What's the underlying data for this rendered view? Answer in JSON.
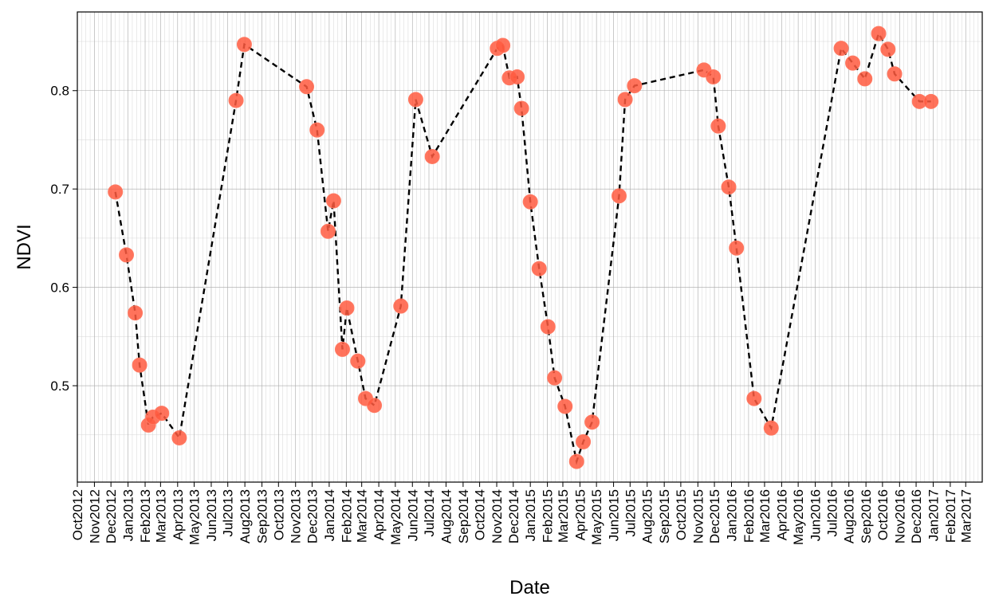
{
  "chart_data": {
    "type": "line",
    "title": "",
    "xlabel": "Date",
    "ylabel": "NDVI",
    "x_type": "date",
    "xlim": [
      "2012-10-01",
      "2017-03-31"
    ],
    "ylim": [
      0.402,
      0.88
    ],
    "y_ticks": [
      0.5,
      0.6,
      0.7,
      0.8
    ],
    "y_tick_labels": [
      "0.5",
      "0.6",
      "0.7",
      "0.8"
    ],
    "x_ticks": [
      "2012-10-01",
      "2012-11-01",
      "2012-12-01",
      "2013-01-01",
      "2013-02-01",
      "2013-03-01",
      "2013-04-01",
      "2013-05-01",
      "2013-06-01",
      "2013-07-01",
      "2013-08-01",
      "2013-09-01",
      "2013-10-01",
      "2013-11-01",
      "2013-12-01",
      "2014-01-01",
      "2014-02-01",
      "2014-03-01",
      "2014-04-01",
      "2014-05-01",
      "2014-06-01",
      "2014-07-01",
      "2014-08-01",
      "2014-09-01",
      "2014-10-01",
      "2014-11-01",
      "2014-12-01",
      "2015-01-01",
      "2015-02-01",
      "2015-03-01",
      "2015-04-01",
      "2015-05-01",
      "2015-06-01",
      "2015-07-01",
      "2015-08-01",
      "2015-09-01",
      "2015-10-01",
      "2015-11-01",
      "2015-12-01",
      "2016-01-01",
      "2016-02-01",
      "2016-03-01",
      "2016-04-01",
      "2016-05-01",
      "2016-06-01",
      "2016-07-01",
      "2016-08-01",
      "2016-09-01",
      "2016-10-01",
      "2016-11-01",
      "2016-12-01",
      "2017-01-01",
      "2017-02-01",
      "2017-03-01"
    ],
    "x_tick_labels": [
      "Oct2012",
      "Nov2012",
      "Dec2012",
      "Jan2013",
      "Feb2013",
      "Mar2013",
      "Apr2013",
      "May2013",
      "Jun2013",
      "Jul2013",
      "Aug2013",
      "Sep2013",
      "Oct2013",
      "Nov2013",
      "Dec2013",
      "Jan2014",
      "Feb2014",
      "Mar2014",
      "Apr2014",
      "May2014",
      "Jun2014",
      "Jul2014",
      "Aug2014",
      "Sep2014",
      "Oct2014",
      "Nov2014",
      "Dec2014",
      "Jan2015",
      "Feb2015",
      "Mar2015",
      "Apr2015",
      "May2015",
      "Jun2015",
      "Jul2015",
      "Aug2015",
      "Sep2015",
      "Oct2015",
      "Nov2015",
      "Dec2015",
      "Jan2016",
      "Feb2016",
      "Mar2016",
      "Apr2016",
      "May2016",
      "Jun2016",
      "Jul2016",
      "Aug2016",
      "Sep2016",
      "Oct2016",
      "Nov2016",
      "Dec2016",
      "Jan2017",
      "Feb2017",
      "Mar2017"
    ],
    "minor_gridlines_per_month": 4,
    "grid": true,
    "legend": "none",
    "point_color": "#FF5A40",
    "line_color": "#000000",
    "line_style": "dashed",
    "series": [
      {
        "x": [
          "2012-12-09",
          "2012-12-29",
          "2013-01-14",
          "2013-01-22",
          "2013-02-07",
          "2013-02-15",
          "2013-03-03",
          "2013-04-04",
          "2013-07-16",
          "2013-07-31",
          "2013-11-21",
          "2013-12-10",
          "2013-12-30",
          "2014-01-09",
          "2014-01-25",
          "2014-02-02",
          "2014-02-22",
          "2014-03-08",
          "2014-03-24",
          "2014-05-11",
          "2014-06-07",
          "2014-07-07",
          "2014-11-02",
          "2014-11-12",
          "2014-11-24",
          "2014-12-08",
          "2014-12-16",
          "2015-01-01",
          "2015-01-17",
          "2015-02-02",
          "2015-02-14",
          "2015-03-05",
          "2015-03-26",
          "2015-04-07",
          "2015-04-23",
          "2015-06-11",
          "2015-06-22",
          "2015-07-09",
          "2015-11-12",
          "2015-11-29",
          "2015-12-08",
          "2015-12-27",
          "2016-01-10",
          "2016-02-11",
          "2016-03-13",
          "2016-07-18",
          "2016-08-08",
          "2016-08-30",
          "2016-09-24",
          "2016-10-11",
          "2016-10-23",
          "2016-12-07",
          "2016-12-28"
        ],
        "y": [
          0.697,
          0.633,
          0.574,
          0.521,
          0.46,
          0.468,
          0.472,
          0.447,
          0.79,
          0.847,
          0.804,
          0.76,
          0.657,
          0.688,
          0.537,
          0.579,
          0.525,
          0.487,
          0.48,
          0.581,
          0.791,
          0.733,
          0.843,
          0.846,
          0.813,
          0.814,
          0.782,
          0.687,
          0.619,
          0.56,
          0.508,
          0.479,
          0.423,
          0.443,
          0.463,
          0.693,
          0.791,
          0.805,
          0.821,
          0.814,
          0.764,
          0.702,
          0.64,
          0.487,
          0.457,
          0.843,
          0.828,
          0.812,
          0.858,
          0.842,
          0.817,
          0.789,
          0.789
        ]
      }
    ]
  }
}
